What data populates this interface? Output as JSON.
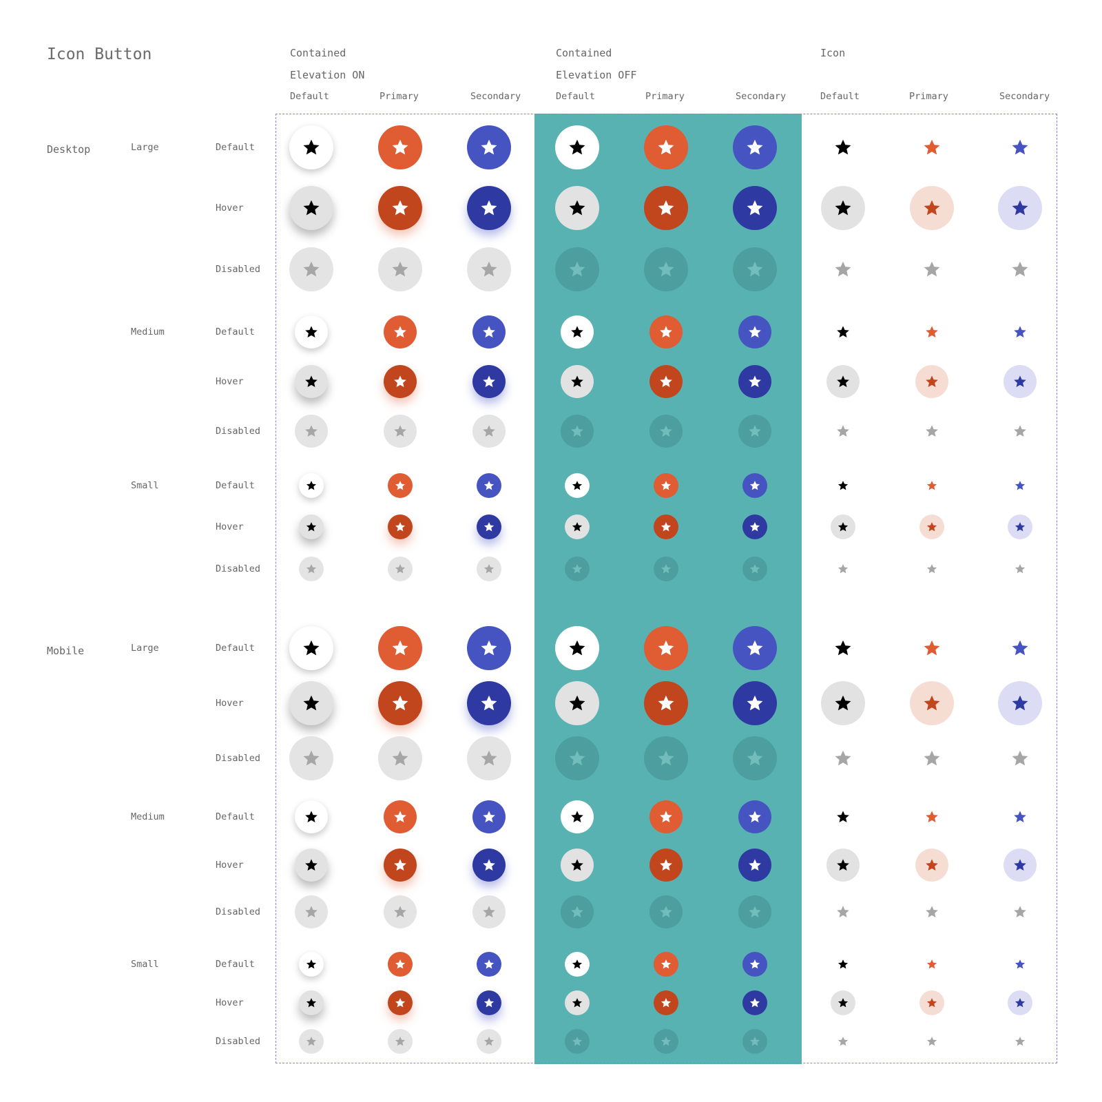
{
  "title": "Icon Button",
  "groups": [
    {
      "line1": "Contained",
      "line2": "Elevation ON",
      "panel": "light",
      "elevated": true,
      "kind": "contained"
    },
    {
      "line1": "Contained",
      "line2": "Elevation OFF",
      "panel": "teal",
      "elevated": false,
      "kind": "contained"
    },
    {
      "line1": "Icon",
      "line2": "",
      "panel": "light",
      "elevated": false,
      "kind": "icon"
    }
  ],
  "variants": [
    "Default",
    "Primary",
    "Secondary"
  ],
  "platforms": [
    {
      "name": "Desktop",
      "sizes": [
        {
          "name": "Large",
          "size": "large",
          "states": [
            "Default",
            "Hover",
            "Disabled"
          ]
        },
        {
          "name": "Medium",
          "size": "medium",
          "states": [
            "Default",
            "Hover",
            "Disabled"
          ]
        },
        {
          "name": "Small",
          "size": "small",
          "states": [
            "Default",
            "Hover",
            "Disabled"
          ]
        }
      ]
    },
    {
      "name": "Mobile",
      "sizes": [
        {
          "name": "Large",
          "size": "large",
          "states": [
            "Default",
            "Hover",
            "Disabled"
          ]
        },
        {
          "name": "Medium",
          "size": "medium",
          "states": [
            "Default",
            "Hover",
            "Disabled"
          ]
        },
        {
          "name": "Small",
          "size": "small",
          "states": [
            "Default",
            "Hover",
            "Disabled"
          ]
        }
      ]
    }
  ],
  "icon": "star-icon",
  "colors": {
    "surface": "#ffffff",
    "teal_panel": "#58b2b1",
    "frame_border": "#8c80e0",
    "default_fill": "#ffffff",
    "default_hover_fill": "#e2e2e2",
    "default_icon": "#000000",
    "primary": "#e05c33",
    "primary_hover": "#c2461d",
    "primary_tint": "#f6ddd3",
    "secondary": "#4654c2",
    "secondary_hover": "#2e3aa1",
    "secondary_tint": "#dcddf4",
    "disabled_fill": "#e4e4e4",
    "disabled_icon": "#a6a6a6",
    "disabled_fill_on_teal": "#4c9f9e",
    "disabled_icon_on_teal": "#72bcbb",
    "on_color_icon": "#ffffff"
  }
}
